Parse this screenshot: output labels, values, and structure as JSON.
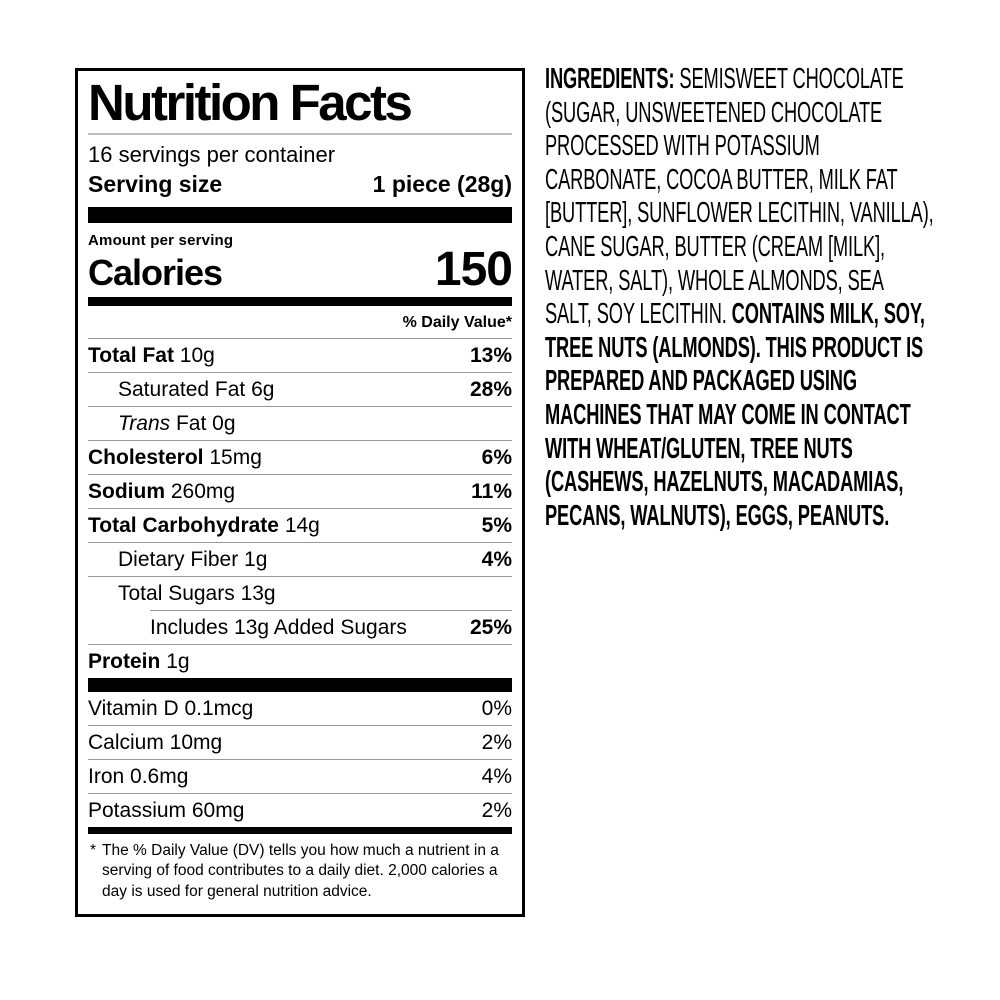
{
  "colors": {
    "text": "#000000",
    "background": "#ffffff",
    "hairline": "#999999"
  },
  "label": {
    "title": "Nutrition Facts",
    "servings_per_container": "16 servings per container",
    "serving_size": {
      "label": "Serving size",
      "value": "1 piece (28g)"
    },
    "amount_per_serving": "Amount per serving",
    "calories": {
      "label": "Calories",
      "value": "150"
    },
    "daily_value_header": "% Daily Value*",
    "nutrient_rows": [
      {
        "name": "Total Fat",
        "amount": "10g",
        "dv": "13%"
      },
      {
        "name": "Saturated Fat",
        "amount": "6g",
        "dv": "28%"
      },
      {
        "name": "Trans",
        "amount": "Fat 0g",
        "dv": ""
      },
      {
        "name": "Cholesterol",
        "amount": "15mg",
        "dv": "6%"
      },
      {
        "name": "Sodium",
        "amount": "260mg",
        "dv": "11%"
      },
      {
        "name": "Total Carbohydrate",
        "amount": "14g",
        "dv": "5%"
      },
      {
        "name": "Dietary Fiber",
        "amount": "1g",
        "dv": "4%"
      },
      {
        "name": "Total Sugars",
        "amount": "13g",
        "dv": ""
      },
      {
        "name": "Includes 13g Added Sugars",
        "amount": "",
        "dv": "25%"
      },
      {
        "name": "Protein",
        "amount": "1g",
        "dv": ""
      }
    ],
    "vitamin_rows": [
      {
        "text": "Vitamin D 0.1mcg",
        "dv": "0%"
      },
      {
        "text": "Calcium 10mg",
        "dv": "2%"
      },
      {
        "text": "Iron 0.6mg",
        "dv": "4%"
      },
      {
        "text": "Potassium 60mg",
        "dv": "2%"
      }
    ],
    "footnote_marker": "*",
    "footnote": "The % Daily Value (DV) tells you how much a nutrient in a serving of food contributes to a daily diet. 2,000 calories a day is used for general nutrition advice."
  },
  "ingredients": {
    "prefix": "INGREDIENTS: ",
    "body": "SEMISWEET CHOCOLATE (SUGAR, UNSWEETENED CHOCOLATE PROCESSED WITH POTASSIUM CARBONATE, COCOA BUTTER, MILK FAT [BUTTER], SUNFLOWER LECITHIN, VANILLA), CANE SUGAR, BUTTER (CREAM [MILK], WATER, SALT), WHOLE ALMONDS, SEA SALT, SOY LECITHIN. ",
    "allergens": "CONTAINS MILK, SOY, TREE NUTS (ALMONDS). THIS PRODUCT IS PREPARED AND PACKAGED USING MACHINES THAT MAY COME IN CONTACT WITH WHEAT/GLUTEN, TREE NUTS (CASHEWS, HAZELNUTS, MACADAMIAS, PECANS, WALNUTS), EGGS, PEANUTS."
  }
}
